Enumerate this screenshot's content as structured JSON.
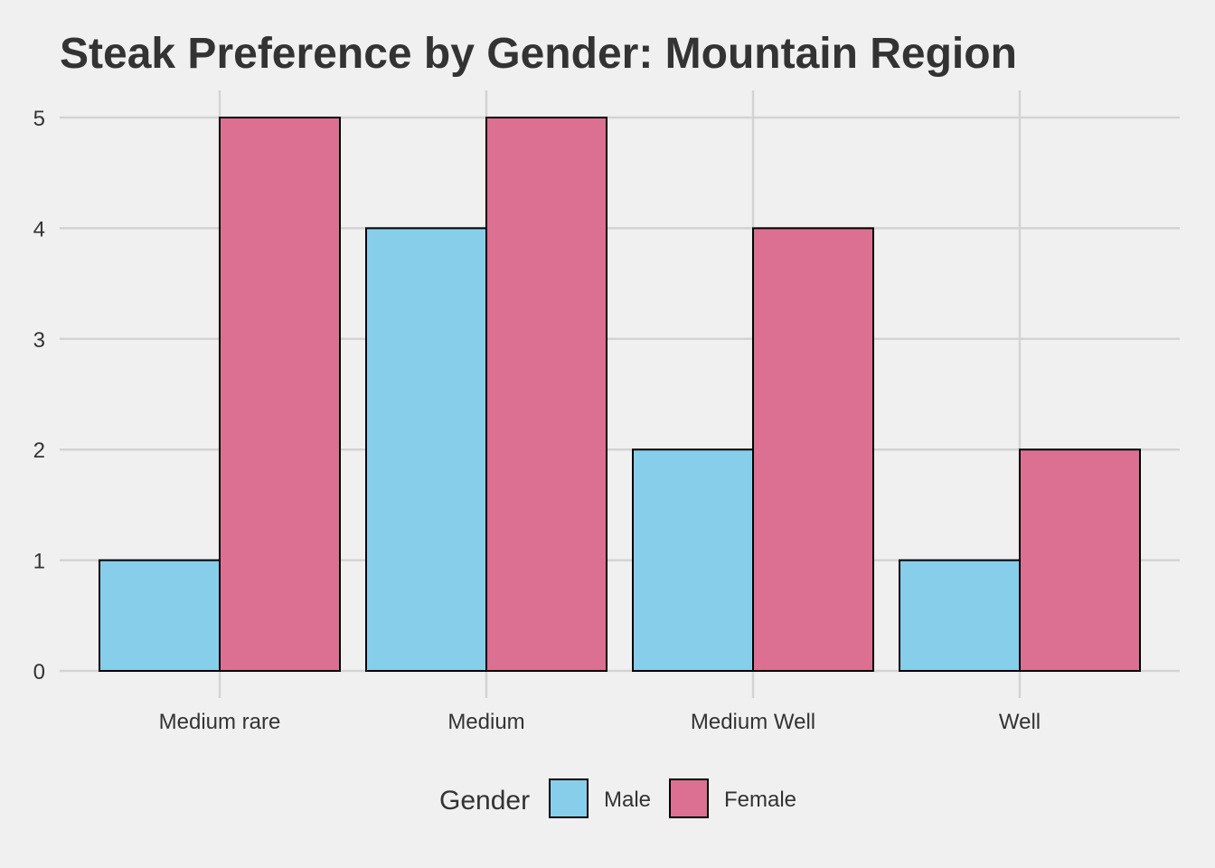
{
  "chart_data": {
    "type": "bar",
    "title": "Steak Preference by Gender: Mountain Region",
    "xlabel": "",
    "ylabel": "",
    "categories": [
      "Medium rare",
      "Medium",
      "Medium Well",
      "Well"
    ],
    "series": [
      {
        "name": "Male",
        "color": "#87ceeb",
        "values": [
          1,
          4,
          2,
          1
        ]
      },
      {
        "name": "Female",
        "color": "#db7093",
        "values": [
          5,
          5,
          4,
          2
        ]
      }
    ],
    "ylim": [
      0,
      5
    ],
    "yticks": [
      "0",
      "1",
      "2",
      "3",
      "4",
      "5"
    ],
    "grid": true,
    "legend": {
      "title": "Gender",
      "position": "bottom"
    }
  }
}
